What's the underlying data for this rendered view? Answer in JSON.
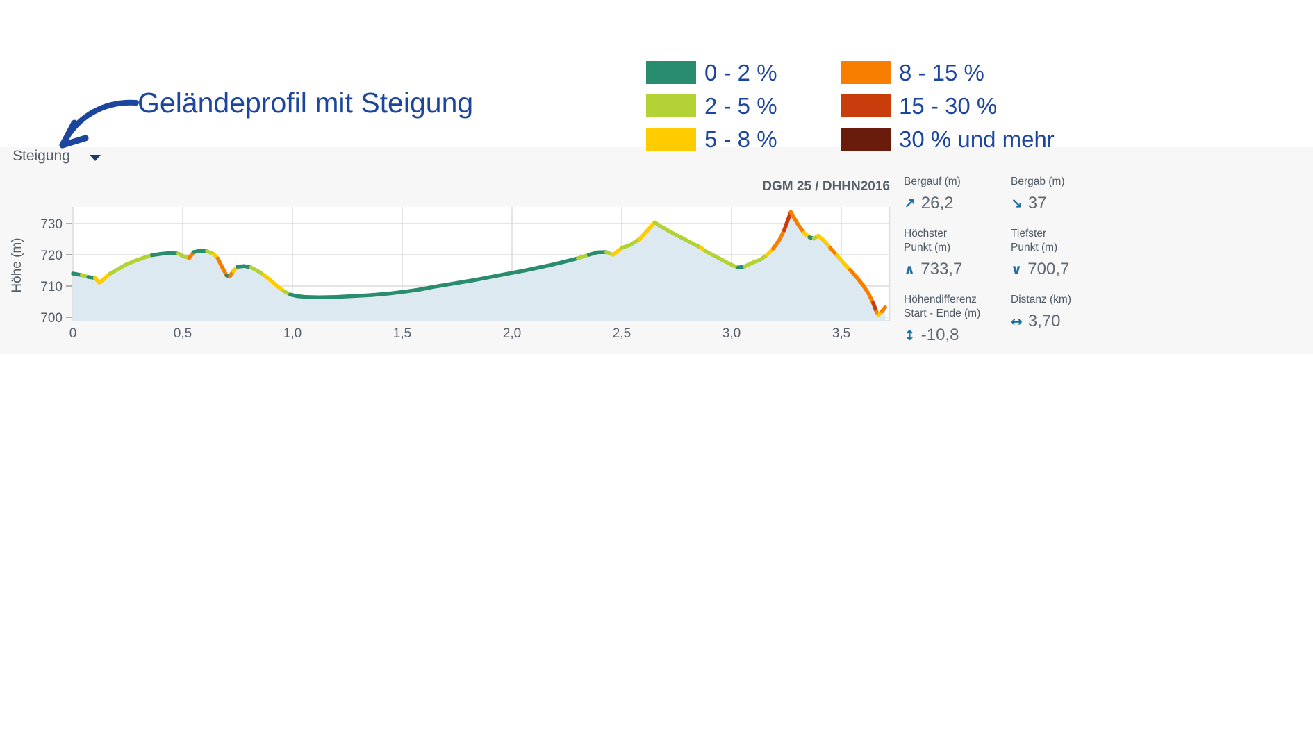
{
  "title": {
    "text": "Geländeprofil mit Steigung"
  },
  "controls": {
    "slope_dropdown": {
      "label": "Steigung",
      "caret_icon": "▾"
    }
  },
  "legend": {
    "items": [
      {
        "label": "0 - 2 %",
        "color": "#2a8c6e"
      },
      {
        "label": "2 - 5 %",
        "color": "#b2d235"
      },
      {
        "label": "5 - 8 %",
        "color": "#ffcc00"
      },
      {
        "label": "8 - 15 %",
        "color": "#f87e00"
      },
      {
        "label": "15 - 30 %",
        "color": "#c93c0c"
      },
      {
        "label": "30 % und mehr",
        "color": "#691c0c"
      }
    ]
  },
  "chart": {
    "source_label": "DGM 25 / DHHN2016"
  },
  "stats": {
    "items": [
      {
        "id": "bergauf",
        "lines": [
          "Bergauf (m)",
          ""
        ],
        "icon": "↗",
        "value": "26,2"
      },
      {
        "id": "bergab",
        "lines": [
          "Bergab (m)",
          ""
        ],
        "icon": "↘",
        "value": "37"
      },
      {
        "id": "hoechster-punkt",
        "lines": [
          "Höchster",
          "Punkt (m)"
        ],
        "icon": "∧",
        "value": "733,7"
      },
      {
        "id": "tiefster-punkt",
        "lines": [
          "Tiefster",
          "Punkt (m)"
        ],
        "icon": "∨",
        "value": "700,7"
      },
      {
        "id": "hoehendifferenz",
        "lines": [
          "Höhendifferenz",
          "Start - Ende (m)"
        ],
        "icon": "↕",
        "value": "-10,8"
      },
      {
        "id": "distanz",
        "lines": [
          "Distanz (km)",
          ""
        ],
        "icon": "↔",
        "value": "3,70"
      }
    ]
  },
  "chart_data": {
    "type": "area",
    "title": "Geländeprofil mit Steigung",
    "ylabel": "Höhe (m)",
    "xlabel_unit": "km",
    "xlim": [
      0,
      3.72
    ],
    "ylim": [
      699,
      735.5
    ],
    "grid": true,
    "source": "DGM 25 / DHHN2016",
    "xticks": {
      "values": [
        0,
        0.5,
        1.0,
        1.5,
        2.0,
        2.5,
        3.0,
        3.5
      ],
      "labels": [
        "0",
        "0,5",
        "1,0",
        "1,5",
        "2,0",
        "2,5",
        "3,0",
        "3,5"
      ]
    },
    "yticks": {
      "values": [
        700,
        710,
        720,
        730
      ],
      "labels": [
        "700",
        "710",
        "720",
        "730"
      ]
    },
    "area_fill": "#dde9f1",
    "slope_classes": [
      {
        "label": "0 - 2 %",
        "max_percent": 2,
        "color": "#2a8c6e"
      },
      {
        "label": "2 - 5 %",
        "max_percent": 5,
        "color": "#b2d235"
      },
      {
        "label": "5 - 8 %",
        "max_percent": 8,
        "color": "#ffcc00"
      },
      {
        "label": "8 - 15 %",
        "max_percent": 15,
        "color": "#f87e00"
      },
      {
        "label": "15 - 30 %",
        "max_percent": 30,
        "color": "#c93c0c"
      },
      {
        "label": "30 % und mehr",
        "max_percent": null,
        "color": "#691c0c"
      }
    ],
    "summary": {
      "ascent_m": 26.2,
      "descent_m": 37,
      "highest_m": 733.7,
      "lowest_m": 700.7,
      "start_end_diff_m": -10.8,
      "distance_km": 3.7
    },
    "profile": [
      [
        0.0,
        714.0
      ],
      [
        0.04,
        713.5
      ],
      [
        0.07,
        712.9
      ],
      [
        0.1,
        712.6
      ],
      [
        0.12,
        711.1
      ],
      [
        0.14,
        712.2
      ],
      [
        0.17,
        714.0
      ],
      [
        0.2,
        715.2
      ],
      [
        0.24,
        716.8
      ],
      [
        0.28,
        718.0
      ],
      [
        0.32,
        719.0
      ],
      [
        0.36,
        719.9
      ],
      [
        0.4,
        720.3
      ],
      [
        0.44,
        720.6
      ],
      [
        0.48,
        720.4
      ],
      [
        0.5,
        719.6
      ],
      [
        0.53,
        719.0
      ],
      [
        0.55,
        720.9
      ],
      [
        0.58,
        721.3
      ],
      [
        0.61,
        721.2
      ],
      [
        0.64,
        720.3
      ],
      [
        0.66,
        718.8
      ],
      [
        0.68,
        716.0
      ],
      [
        0.7,
        713.4
      ],
      [
        0.715,
        713.1
      ],
      [
        0.73,
        714.8
      ],
      [
        0.75,
        716.2
      ],
      [
        0.78,
        716.4
      ],
      [
        0.81,
        716.0
      ],
      [
        0.84,
        714.9
      ],
      [
        0.87,
        713.5
      ],
      [
        0.9,
        711.9
      ],
      [
        0.93,
        710.0
      ],
      [
        0.96,
        708.4
      ],
      [
        0.99,
        707.3
      ],
      [
        1.02,
        706.8
      ],
      [
        1.06,
        706.5
      ],
      [
        1.12,
        706.4
      ],
      [
        1.2,
        706.5
      ],
      [
        1.28,
        706.8
      ],
      [
        1.36,
        707.1
      ],
      [
        1.44,
        707.6
      ],
      [
        1.52,
        708.3
      ],
      [
        1.58,
        708.9
      ],
      [
        1.64,
        709.7
      ],
      [
        1.7,
        710.4
      ],
      [
        1.76,
        711.1
      ],
      [
        1.82,
        711.8
      ],
      [
        1.88,
        712.6
      ],
      [
        1.94,
        713.4
      ],
      [
        2.0,
        714.2
      ],
      [
        2.06,
        715.0
      ],
      [
        2.12,
        715.9
      ],
      [
        2.18,
        716.8
      ],
      [
        2.24,
        717.8
      ],
      [
        2.3,
        718.9
      ],
      [
        2.35,
        720.0
      ],
      [
        2.39,
        720.8
      ],
      [
        2.43,
        720.9
      ],
      [
        2.46,
        720.0
      ],
      [
        2.5,
        722.2
      ],
      [
        2.54,
        723.2
      ],
      [
        2.58,
        725.0
      ],
      [
        2.62,
        728.0
      ],
      [
        2.65,
        730.4
      ],
      [
        2.67,
        729.4
      ],
      [
        2.72,
        727.4
      ],
      [
        2.78,
        725.2
      ],
      [
        2.84,
        723.0
      ],
      [
        2.86,
        722.3
      ],
      [
        2.88,
        721.2
      ],
      [
        2.94,
        719.0
      ],
      [
        3.0,
        716.8
      ],
      [
        3.03,
        715.9
      ],
      [
        3.06,
        716.3
      ],
      [
        3.1,
        717.6
      ],
      [
        3.13,
        718.4
      ],
      [
        3.16,
        719.9
      ],
      [
        3.19,
        722.0
      ],
      [
        3.22,
        725.0
      ],
      [
        3.24,
        727.9
      ],
      [
        3.27,
        733.7
      ],
      [
        3.3,
        730.0
      ],
      [
        3.33,
        727.0
      ],
      [
        3.355,
        725.6
      ],
      [
        3.375,
        725.2
      ],
      [
        3.395,
        726.1
      ],
      [
        3.42,
        724.6
      ],
      [
        3.45,
        722.2
      ],
      [
        3.48,
        719.8
      ],
      [
        3.51,
        717.4
      ],
      [
        3.54,
        715.2
      ],
      [
        3.57,
        712.8
      ],
      [
        3.6,
        710.2
      ],
      [
        3.625,
        707.5
      ],
      [
        3.645,
        704.6
      ],
      [
        3.66,
        701.8
      ],
      [
        3.67,
        700.7
      ],
      [
        3.685,
        701.9
      ],
      [
        3.7,
        703.2
      ]
    ]
  }
}
